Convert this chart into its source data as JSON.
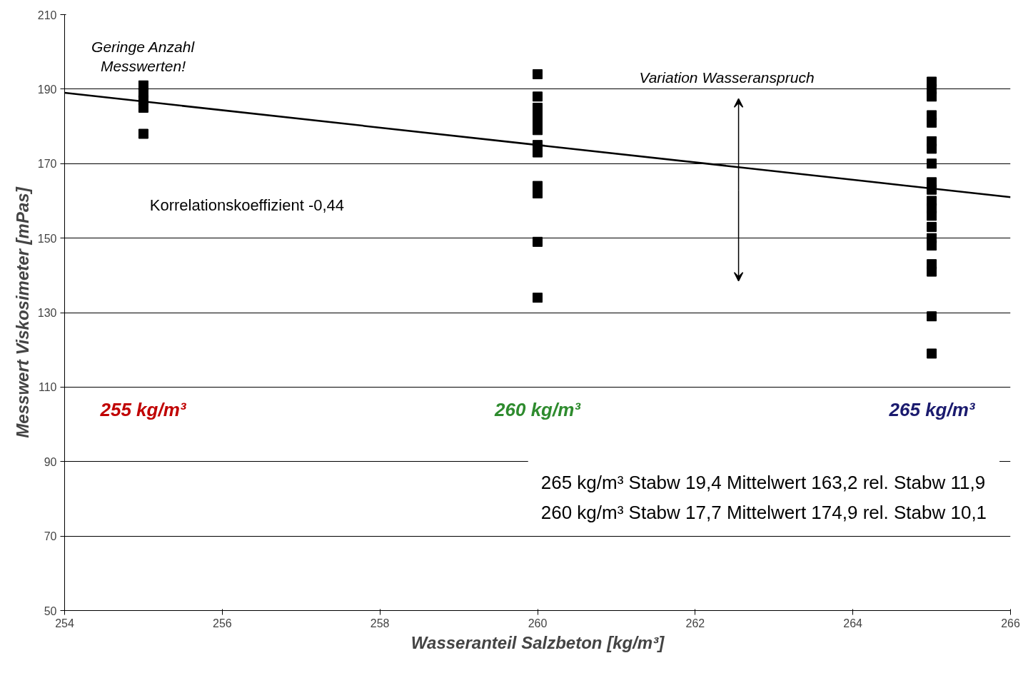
{
  "chart_data": {
    "type": "scatter",
    "xlabel": "Wasseranteil Salzbeton [kg/m³]",
    "ylabel": "Messwert Viskosimeter [mPas]",
    "xlim": [
      254,
      266
    ],
    "xticks": [
      254,
      256,
      258,
      260,
      262,
      264,
      266
    ],
    "ylim": [
      50,
      210
    ],
    "yticks": [
      50,
      70,
      90,
      110,
      130,
      150,
      170,
      190,
      210
    ],
    "grid": "y",
    "marker": "square",
    "series": [
      {
        "color": "#000000",
        "x": [
          255,
          255,
          255,
          255,
          255
        ],
        "values": [
          191,
          189,
          187,
          185,
          178
        ]
      },
      {
        "color": "#000000",
        "x": [
          260,
          260,
          260,
          260,
          260,
          260,
          260,
          260,
          260,
          260,
          260,
          260
        ],
        "values": [
          194,
          188,
          185,
          183,
          181,
          179,
          175,
          173,
          164,
          162,
          149,
          134
        ]
      },
      {
        "color": "#000000",
        "x": [
          265,
          265,
          265,
          265,
          265,
          265,
          265,
          265,
          265,
          265,
          265,
          265,
          265,
          265,
          265,
          265,
          265,
          265,
          265
        ],
        "values": [
          192,
          190,
          188,
          183,
          181,
          176,
          174,
          170,
          165,
          163,
          160,
          158,
          156,
          153,
          150,
          148,
          143,
          141,
          129
        ]
      },
      {
        "color": "#000000",
        "x": [
          265
        ],
        "values": [
          119
        ]
      },
      {
        "type": "line",
        "color": "#000000",
        "marker": "none",
        "x": [
          254,
          266
        ],
        "values": [
          189,
          161
        ]
      }
    ],
    "annotations": [
      "Geringe Anzahl\nMesswerten!",
      "Variation Wasseranspruch",
      "Korrelationskoeffizient -0,44",
      "255 kg/m³",
      "260 kg/m³",
      "265 kg/m³",
      "265 kg/m³ Stabw 19,4 Mittelwert 163,2 rel. Stabw 11,9\n260 kg/m³ Stabw 17,7 Mittelwert 174,9 rel. Stabw 10,1"
    ]
  }
}
